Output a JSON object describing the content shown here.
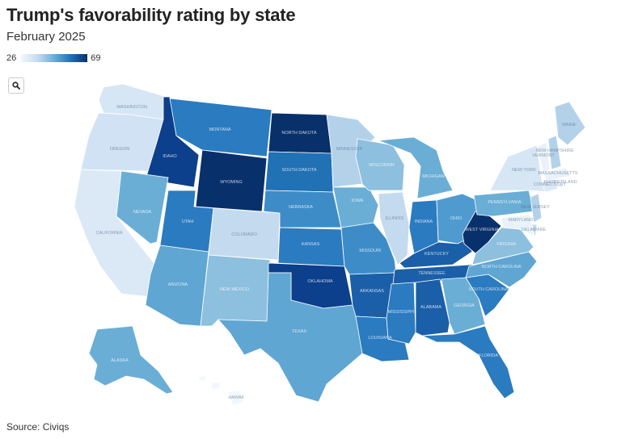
{
  "title": "Trump's favorability rating by state",
  "subtitle": "February 2025",
  "legend": {
    "min": "26",
    "max": "69"
  },
  "source": "Source: Civiqs",
  "map_data": {
    "type": "choropleth",
    "scale": {
      "min": 26,
      "max": 69,
      "colors": [
        "#f2f7fd",
        "#08306b"
      ]
    },
    "states": [
      {
        "name": "WASHINGTON",
        "fill": "#d6e6f5"
      },
      {
        "name": "OREGON",
        "fill": "#d0e2f3"
      },
      {
        "name": "CALIFORNIA",
        "fill": "#dbe9f6"
      },
      {
        "name": "IDAHO",
        "fill": "#0c3f8c"
      },
      {
        "name": "NEVADA",
        "fill": "#6aaed6"
      },
      {
        "name": "MONTANA",
        "fill": "#2b7bc0"
      },
      {
        "name": "WYOMING",
        "fill": "#08306b"
      },
      {
        "name": "UTAH",
        "fill": "#2b7bc0"
      },
      {
        "name": "ARIZONA",
        "fill": "#5fa6d3"
      },
      {
        "name": "COLORADO",
        "fill": "#c4daee"
      },
      {
        "name": "NEW MEXICO",
        "fill": "#8dbfdf"
      },
      {
        "name": "NORTH DAKOTA",
        "fill": "#08306b"
      },
      {
        "name": "SOUTH DAKOTA",
        "fill": "#2171b5"
      },
      {
        "name": "NEBRASKA",
        "fill": "#3d8cc7"
      },
      {
        "name": "KANSAS",
        "fill": "#2b7bc0"
      },
      {
        "name": "OKLAHOMA",
        "fill": "#0c3f8c"
      },
      {
        "name": "TEXAS",
        "fill": "#5fa6d3"
      },
      {
        "name": "MINNESOTA",
        "fill": "#b3d2ea"
      },
      {
        "name": "IOWA",
        "fill": "#6aaed6"
      },
      {
        "name": "MISSOURI",
        "fill": "#3d8cc7"
      },
      {
        "name": "ARKANSAS",
        "fill": "#1a5fa8"
      },
      {
        "name": "LOUISIANA",
        "fill": "#2b7bc0"
      },
      {
        "name": "WISCONSIN",
        "fill": "#8dbfdf"
      },
      {
        "name": "ILLINOIS",
        "fill": "#c4daee"
      },
      {
        "name": "MICHIGAN",
        "fill": "#6aaed6"
      },
      {
        "name": "INDIANA",
        "fill": "#2b7bc0"
      },
      {
        "name": "OHIO",
        "fill": "#4f9bd0"
      },
      {
        "name": "KENTUCKY",
        "fill": "#1a5fa8"
      },
      {
        "name": "TENNESSEE",
        "fill": "#1a5fa8"
      },
      {
        "name": "MISSISSIPPI",
        "fill": "#2b7bc0"
      },
      {
        "name": "ALABAMA",
        "fill": "#1a5fa8"
      },
      {
        "name": "GEORGIA",
        "fill": "#6aaed6"
      },
      {
        "name": "FLORIDA",
        "fill": "#2b7bc0"
      },
      {
        "name": "SOUTH CAROLINA",
        "fill": "#2b7bc0"
      },
      {
        "name": "NORTH CAROLINA",
        "fill": "#5fa6d3"
      },
      {
        "name": "VIRGINIA",
        "fill": "#8dbfdf"
      },
      {
        "name": "WEST VIRGINIA",
        "fill": "#08306b"
      },
      {
        "name": "PENNSYLVANIA",
        "fill": "#6aaed6"
      },
      {
        "name": "NEW YORK",
        "fill": "#d6e6f5"
      },
      {
        "name": "VERMONT",
        "fill": "#e9f2fa"
      },
      {
        "name": "NEW HAMPSHIRE",
        "fill": "#b3d2ea"
      },
      {
        "name": "MAINE",
        "fill": "#b3d2ea"
      },
      {
        "name": "MASSACHUSETTS",
        "fill": "#e9f2fa"
      },
      {
        "name": "CONNECTICUT",
        "fill": "#dbe9f6"
      },
      {
        "name": "RHODE ISLAND",
        "fill": "#e9f2fa"
      },
      {
        "name": "NEW JERSEY",
        "fill": "#b3d2ea"
      },
      {
        "name": "DELAWARE",
        "fill": "#c4daee"
      },
      {
        "name": "MARYLAND",
        "fill": "#e9f2fa"
      },
      {
        "name": "ALASKA",
        "fill": "#6aaed6"
      },
      {
        "name": "HAWAII",
        "fill": "#f2f7fd"
      }
    ]
  }
}
